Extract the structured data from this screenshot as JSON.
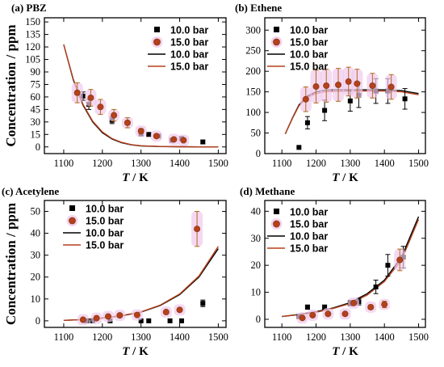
{
  "chart_data": [
    {
      "type": "scatter",
      "title": "(a) PBZ",
      "xlabel_var": "T",
      "xlabel_unit": " / K",
      "ylabel": "Concentration / ppm",
      "xlim": [
        1050,
        1520
      ],
      "ylim": [
        -8,
        155
      ],
      "xticks": [
        1100,
        1200,
        1300,
        1400,
        1500
      ],
      "yticks": [
        0,
        15,
        30,
        45,
        60,
        75,
        90,
        105,
        120,
        135,
        150
      ],
      "legend": [
        "10.0 bar",
        "15.0 bar",
        "10.0 bar",
        "15.0 bar"
      ],
      "legend_position": "top-right",
      "grid": false,
      "series": [
        {
          "name": "10.0 bar",
          "kind": "points",
          "x": [
            1150,
            1165,
            1225,
            1300,
            1320,
            1345,
            1380,
            1405,
            1460
          ],
          "y": [
            61,
            51,
            32,
            16,
            15,
            13,
            8,
            10,
            6
          ],
          "err": [
            5,
            6,
            4,
            3,
            2,
            2,
            2,
            2,
            2
          ]
        },
        {
          "name": "15.0 bar",
          "kind": "points",
          "x": [
            1135,
            1170,
            1195,
            1230,
            1265,
            1300,
            1340,
            1385,
            1410
          ],
          "y": [
            65,
            59,
            48,
            38,
            29,
            19,
            13,
            9,
            8
          ],
          "err": [
            12,
            10,
            9,
            7,
            6,
            3,
            2,
            2,
            2
          ]
        },
        {
          "name": "10.0 bar",
          "kind": "line",
          "x": [
            1100,
            1125,
            1150,
            1175,
            1200,
            1225,
            1250,
            1275,
            1300,
            1350,
            1400,
            1450,
            1500
          ],
          "y": [
            123,
            80,
            50,
            30,
            17,
            9.5,
            5,
            2.5,
            1.2,
            0.4,
            0.2,
            0.1,
            0.1
          ]
        },
        {
          "name": "15.0 bar",
          "kind": "line",
          "x": [
            1100,
            1125,
            1150,
            1175,
            1200,
            1225,
            1250,
            1275,
            1300,
            1350,
            1400,
            1450,
            1500
          ],
          "y": [
            123,
            81,
            51,
            31,
            18,
            10,
            5.5,
            2.8,
            1.4,
            0.5,
            0.2,
            0.1,
            0.1
          ]
        }
      ]
    },
    {
      "type": "scatter",
      "title": "(b) Ethene",
      "xlabel_var": "T",
      "xlabel_unit": " / K",
      "ylabel": "",
      "xlim": [
        1050,
        1520
      ],
      "ylim": [
        0,
        330
      ],
      "xticks": [
        1100,
        1200,
        1300,
        1400,
        1500
      ],
      "yticks": [
        0,
        50,
        100,
        150,
        200,
        250,
        300
      ],
      "legend": [
        "10.0 bar",
        "15.0 bar",
        "10.0 bar",
        "15.0 bar"
      ],
      "legend_position": "top-left",
      "grid": false,
      "series": [
        {
          "name": "10.0 bar",
          "kind": "points",
          "x": [
            1150,
            1175,
            1225,
            1300,
            1325,
            1375,
            1410,
            1460
          ],
          "y": [
            15,
            75,
            105,
            128,
            142,
            152,
            152,
            133
          ],
          "err": [
            0,
            15,
            25,
            25,
            30,
            30,
            30,
            25
          ]
        },
        {
          "name": "15.0 bar",
          "kind": "points",
          "x": [
            1170,
            1200,
            1230,
            1265,
            1295,
            1320,
            1365,
            1420
          ],
          "y": [
            132,
            163,
            165,
            167,
            175,
            170,
            165,
            162
          ],
          "err": [
            30,
            40,
            40,
            40,
            35,
            35,
            30,
            30
          ]
        },
        {
          "name": "10.0 bar",
          "kind": "line",
          "x": [
            1110,
            1130,
            1150,
            1175,
            1200,
            1225,
            1250,
            1300,
            1350,
            1400,
            1450,
            1500
          ],
          "y": [
            48,
            85,
            118,
            140,
            150,
            154,
            155,
            155,
            155,
            155,
            153,
            146
          ]
        },
        {
          "name": "15.0 bar",
          "kind": "line",
          "x": [
            1110,
            1130,
            1150,
            1175,
            1200,
            1225,
            1250,
            1300,
            1350,
            1400,
            1450,
            1500
          ],
          "y": [
            48,
            84,
            116,
            137,
            146,
            150,
            151,
            152,
            152,
            152,
            150,
            143
          ]
        }
      ]
    },
    {
      "type": "scatter",
      "title": "(c) Acetylene",
      "xlabel_var": "T",
      "xlabel_unit": " / K",
      "ylabel": "Concentration / ppm",
      "xlim": [
        1050,
        1520
      ],
      "ylim": [
        -3,
        55
      ],
      "xticks": [
        1100,
        1200,
        1300,
        1400,
        1500
      ],
      "yticks": [
        0,
        10,
        20,
        30,
        40,
        50
      ],
      "legend": [
        "10.0 bar",
        "15.0 bar",
        "10.0 bar",
        "15.0 bar"
      ],
      "legend_position": "top-left",
      "grid": false,
      "series": [
        {
          "name": "10.0 bar",
          "kind": "points",
          "x": [
            1160,
            1175,
            1220,
            1300,
            1320,
            1375,
            1405,
            1460
          ],
          "y": [
            0,
            0,
            0,
            0,
            0,
            0,
            0,
            8
          ],
          "err": [
            0,
            0,
            0,
            0,
            0,
            0,
            0,
            1.5
          ]
        },
        {
          "name": "15.0 bar",
          "kind": "points",
          "x": [
            1150,
            1185,
            1215,
            1245,
            1290,
            1365,
            1400,
            1445
          ],
          "y": [
            0.5,
            1.2,
            2,
            2.5,
            2.7,
            4,
            5,
            42
          ],
          "err": [
            0,
            0,
            0,
            0,
            0,
            0,
            0,
            8
          ]
        },
        {
          "name": "10.0 bar",
          "kind": "line",
          "x": [
            1100,
            1150,
            1200,
            1250,
            1300,
            1350,
            1400,
            1450,
            1500
          ],
          "y": [
            0.2,
            0.6,
            1.3,
            2.3,
            4,
            7,
            12,
            20,
            33
          ]
        },
        {
          "name": "15.0 bar",
          "kind": "line",
          "x": [
            1100,
            1150,
            1200,
            1250,
            1300,
            1350,
            1400,
            1450,
            1500
          ],
          "y": [
            0.2,
            0.6,
            1.3,
            2.4,
            4.1,
            7.2,
            12.3,
            20.5,
            34
          ]
        }
      ]
    },
    {
      "type": "scatter",
      "title": "(d) Methane",
      "xlabel_var": "T",
      "xlabel_unit": " / K",
      "ylabel": "",
      "xlim": [
        1050,
        1520
      ],
      "ylim": [
        -3,
        44
      ],
      "xticks": [
        1100,
        1200,
        1300,
        1400,
        1500
      ],
      "yticks": [
        0,
        10,
        20,
        30,
        40
      ],
      "legend": [
        "10.0 bar",
        "15.0 bar",
        "10.0 bar",
        "15.0 bar"
      ],
      "legend_position": "top-left",
      "grid": false,
      "series": [
        {
          "name": "10.0 bar",
          "kind": "points",
          "x": [
            1150,
            1175,
            1225,
            1300,
            1325,
            1375,
            1410,
            1455
          ],
          "y": [
            1,
            4.5,
            4.5,
            6,
            6.5,
            12,
            20,
            23
          ],
          "err": [
            0,
            0.8,
            0.8,
            1,
            1.2,
            2.5,
            4,
            4
          ]
        },
        {
          "name": "15.0 bar",
          "kind": "points",
          "x": [
            1160,
            1190,
            1235,
            1285,
            1310,
            1360,
            1400,
            1445
          ],
          "y": [
            0.5,
            1.5,
            2,
            2,
            6,
            4.5,
            5.5,
            22
          ],
          "err": [
            0,
            0,
            0,
            0,
            0,
            0.8,
            1.2,
            4
          ]
        },
        {
          "name": "10.0 bar",
          "kind": "line",
          "x": [
            1100,
            1150,
            1200,
            1250,
            1300,
            1350,
            1400,
            1450,
            1500
          ],
          "y": [
            1,
            1.8,
            2.8,
            4.2,
            6.2,
            9.5,
            14.5,
            23,
            38
          ]
        },
        {
          "name": "15.0 bar",
          "kind": "line",
          "x": [
            1100,
            1150,
            1200,
            1250,
            1300,
            1350,
            1400,
            1450,
            1500
          ],
          "y": [
            1,
            1.7,
            2.6,
            4,
            5.9,
            9,
            14,
            22,
            37
          ]
        }
      ]
    }
  ],
  "colors": {
    "series10": "#000000",
    "series15": "#b5401c",
    "series15_edge": "#8a3a12",
    "halo": "#f1c9ec",
    "errorbar15": "#b06a1a"
  }
}
